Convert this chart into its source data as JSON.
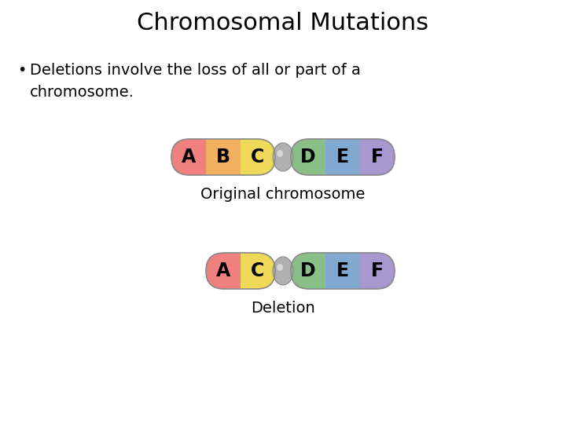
{
  "title": "Chromosomal Mutations",
  "bullet_text": "Deletions involve the loss of all or part of a\nchromosome.",
  "original_label": "Original chromosome",
  "deletion_label": "Deletion",
  "original_left": [
    "A",
    "B",
    "C"
  ],
  "original_left_colors": [
    "#f08080",
    "#f0b060",
    "#f0d858"
  ],
  "original_right": [
    "D",
    "E",
    "F"
  ],
  "original_right_colors": [
    "#88c088",
    "#80a8d0",
    "#a898d0"
  ],
  "deletion_left": [
    "A",
    "C"
  ],
  "deletion_left_colors": [
    "#f08080",
    "#f0d858"
  ],
  "deletion_right": [
    "D",
    "E",
    "F"
  ],
  "deletion_right_colors": [
    "#88c088",
    "#80a8d0",
    "#a898d0"
  ],
  "background_color": "#ffffff",
  "title_fontsize": 22,
  "bullet_fontsize": 14,
  "label_fontsize": 14
}
